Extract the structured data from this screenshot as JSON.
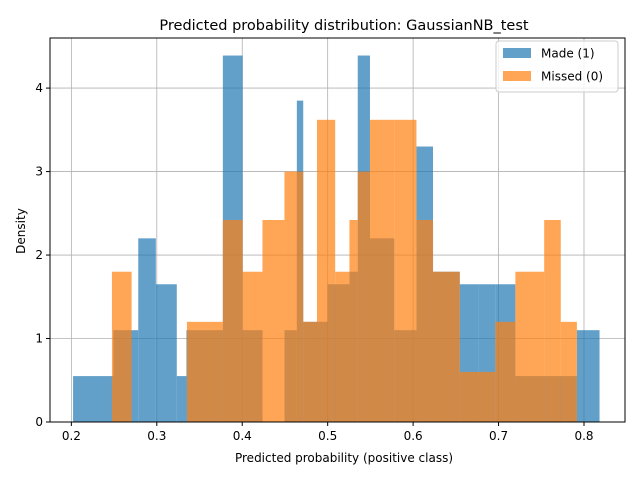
{
  "chart_data": {
    "type": "bar",
    "title": "Predicted probability distribution: GaussianNB_test",
    "xlabel": "Predicted probability (positive class)",
    "ylabel": "Density",
    "xlim": [
      0.175,
      0.848
    ],
    "ylim": [
      0,
      4.6
    ],
    "xticks": [
      0.2,
      0.3,
      0.4,
      0.5,
      0.6,
      0.7,
      0.8
    ],
    "yticks": [
      0,
      1,
      2,
      3,
      4
    ],
    "grid": true,
    "legend_position": "top-right",
    "series": [
      {
        "name": "Made (1)",
        "color": "#1f77b4",
        "alpha": 0.7,
        "bins": [
          {
            "x0": 0.202,
            "x1": 0.2492,
            "y": 0.55
          },
          {
            "x0": 0.2492,
            "x1": 0.2783,
            "y": 1.1
          },
          {
            "x0": 0.2783,
            "x1": 0.2989,
            "y": 2.2
          },
          {
            "x0": 0.2989,
            "x1": 0.3234,
            "y": 1.65
          },
          {
            "x0": 0.3234,
            "x1": 0.3347,
            "y": 0.55
          },
          {
            "x0": 0.3347,
            "x1": 0.3773,
            "y": 1.1
          },
          {
            "x0": 0.3773,
            "x1": 0.4005,
            "y": 4.39
          },
          {
            "x0": 0.4005,
            "x1": 0.4237,
            "y": 1.1
          },
          {
            "x0": 0.4494,
            "x1": 0.4639,
            "y": 1.1
          },
          {
            "x0": 0.4639,
            "x1": 0.4714,
            "y": 3.85
          },
          {
            "x0": 0.4714,
            "x1": 0.4998,
            "y": 1.2
          },
          {
            "x0": 0.4998,
            "x1": 0.5255,
            "y": 1.65
          },
          {
            "x0": 0.5255,
            "x1": 0.5352,
            "y": 1.8
          },
          {
            "x0": 0.5352,
            "x1": 0.5495,
            "y": 4.39
          },
          {
            "x0": 0.5495,
            "x1": 0.5779,
            "y": 2.2
          },
          {
            "x0": 0.5779,
            "x1": 0.6039,
            "y": 1.1
          },
          {
            "x0": 0.6039,
            "x1": 0.6233,
            "y": 3.3
          },
          {
            "x0": 0.6233,
            "x1": 0.6546,
            "y": 1.8
          },
          {
            "x0": 0.6546,
            "x1": 0.6764,
            "y": 1.65
          },
          {
            "x0": 0.6764,
            "x1": 0.6962,
            "y": 1.65
          },
          {
            "x0": 0.6962,
            "x1": 0.7197,
            "y": 1.65
          },
          {
            "x0": 0.7197,
            "x1": 0.7917,
            "y": 0.55
          },
          {
            "x0": 0.7917,
            "x1": 0.8182,
            "y": 1.1
          }
        ]
      },
      {
        "name": "Missed (0)",
        "color": "#ff7f0e",
        "alpha": 0.7,
        "bins": [
          {
            "x0": 0.2475,
            "x1": 0.2705,
            "y": 1.8
          },
          {
            "x0": 0.2705,
            "x1": 0.3353,
            "y": 0.0
          },
          {
            "x0": 0.3353,
            "x1": 0.3773,
            "y": 1.2
          },
          {
            "x0": 0.3773,
            "x1": 0.4005,
            "y": 2.42
          },
          {
            "x0": 0.4005,
            "x1": 0.4237,
            "y": 1.8
          },
          {
            "x0": 0.4237,
            "x1": 0.4494,
            "y": 2.42
          },
          {
            "x0": 0.4494,
            "x1": 0.4714,
            "y": 3.0
          },
          {
            "x0": 0.4714,
            "x1": 0.4875,
            "y": 1.2
          },
          {
            "x0": 0.4875,
            "x1": 0.5088,
            "y": 3.62
          },
          {
            "x0": 0.5088,
            "x1": 0.5255,
            "y": 1.8
          },
          {
            "x0": 0.5255,
            "x1": 0.5352,
            "y": 2.42
          },
          {
            "x0": 0.5352,
            "x1": 0.5495,
            "y": 3.0
          },
          {
            "x0": 0.5495,
            "x1": 0.5779,
            "y": 3.62
          },
          {
            "x0": 0.5779,
            "x1": 0.6039,
            "y": 3.62
          },
          {
            "x0": 0.6039,
            "x1": 0.6233,
            "y": 2.42
          },
          {
            "x0": 0.6233,
            "x1": 0.6546,
            "y": 1.8
          },
          {
            "x0": 0.6546,
            "x1": 0.6962,
            "y": 0.6
          },
          {
            "x0": 0.6962,
            "x1": 0.7197,
            "y": 1.2
          },
          {
            "x0": 0.7197,
            "x1": 0.7534,
            "y": 1.8
          },
          {
            "x0": 0.7534,
            "x1": 0.7728,
            "y": 2.42
          },
          {
            "x0": 0.7728,
            "x1": 0.7917,
            "y": 1.2
          }
        ]
      }
    ]
  }
}
